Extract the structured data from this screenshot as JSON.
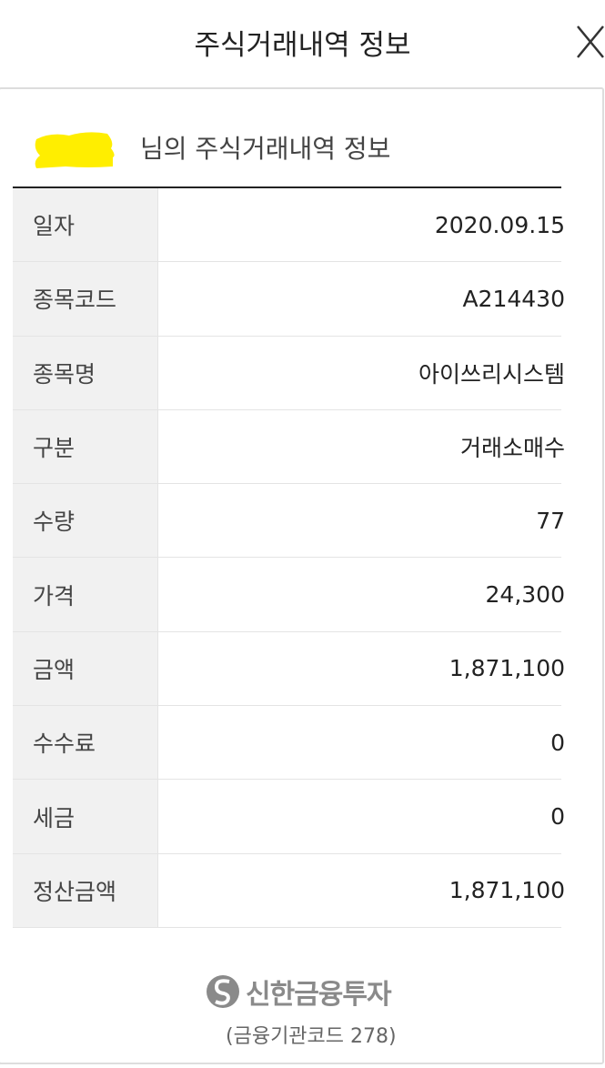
{
  "header": {
    "title": "주식거래내역 정보",
    "close_icon": "close-icon"
  },
  "card": {
    "subtitle": "님의 주식거래내역 정보",
    "redaction_color": "#ffee00",
    "rows": [
      {
        "label": "일자",
        "value": "2020.09.15"
      },
      {
        "label": "종목코드",
        "value": "A214430"
      },
      {
        "label": "종목명",
        "value": "아이쓰리시스템"
      },
      {
        "label": "구분",
        "value": "거래소매수"
      },
      {
        "label": "수량",
        "value": "77"
      },
      {
        "label": "가격",
        "value": "24,300"
      },
      {
        "label": "금액",
        "value": "1,871,100"
      },
      {
        "label": "수수료",
        "value": "0"
      },
      {
        "label": "세금",
        "value": "0"
      },
      {
        "label": "정산금액",
        "value": "1,871,100"
      }
    ]
  },
  "footer": {
    "brand": "신한금융투자",
    "institution_code": "(금융기관코드 278)"
  }
}
